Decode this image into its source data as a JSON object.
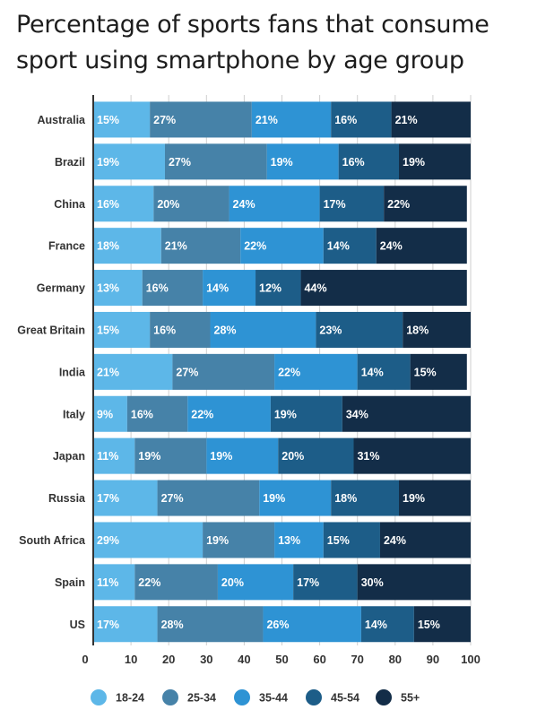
{
  "title_lines": [
    "Percentage of sports fans that consume",
    "sport using smartphone by age group"
  ],
  "colors": {
    "18-24": "#5db7e8",
    "25-34": "#4682a8",
    "35-44": "#2e93d4",
    "45-54": "#1d5d88",
    "55+": "#132d48",
    "gridline": "#cfcfcf",
    "axis": "#333333"
  },
  "chart_data": {
    "type": "bar",
    "orientation": "horizontal",
    "stacked": true,
    "title": "Percentage of sports fans that consume sport using smartphone by age group",
    "xlabel": "",
    "ylabel": "",
    "xlim": [
      0,
      100
    ],
    "xticks": [
      0,
      10,
      20,
      30,
      40,
      50,
      60,
      70,
      80,
      90,
      100
    ],
    "grid": "vertical",
    "legend_position": "bottom",
    "categories": [
      "Australia",
      "Brazil",
      "China",
      "France",
      "Germany",
      "Great Britain",
      "India",
      "Italy",
      "Japan",
      "Russia",
      "South Africa",
      "Spain",
      "US"
    ],
    "series": [
      {
        "name": "18-24",
        "values": [
          15,
          19,
          16,
          18,
          13,
          15,
          21,
          9,
          11,
          17,
          29,
          11,
          17
        ]
      },
      {
        "name": "25-34",
        "values": [
          27,
          27,
          20,
          21,
          16,
          16,
          27,
          16,
          19,
          27,
          19,
          22,
          28
        ]
      },
      {
        "name": "35-44",
        "values": [
          21,
          19,
          24,
          22,
          14,
          28,
          22,
          22,
          19,
          19,
          13,
          20,
          26
        ]
      },
      {
        "name": "45-54",
        "values": [
          16,
          16,
          17,
          14,
          12,
          23,
          14,
          19,
          20,
          18,
          15,
          17,
          14
        ]
      },
      {
        "name": "55+",
        "values": [
          21,
          19,
          22,
          24,
          44,
          18,
          15,
          34,
          31,
          19,
          24,
          30,
          15
        ]
      }
    ]
  }
}
